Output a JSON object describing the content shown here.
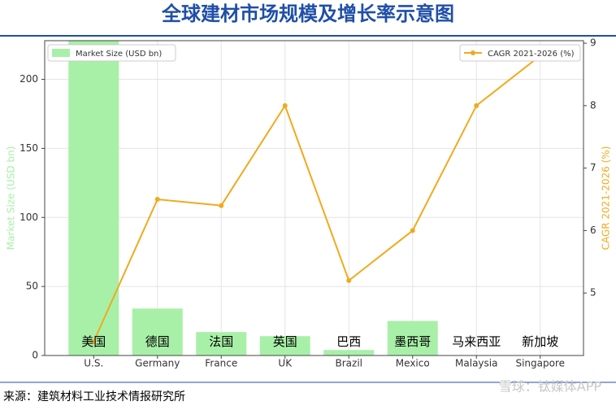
{
  "title": "全球建材市场规模及增长率示意图",
  "source": "来源：建筑材料工业技术情报研究所",
  "watermark": "雪球：钛媒体APP",
  "chart_data": {
    "type": "bar-line",
    "categories": [
      "U.S.",
      "Germany",
      "France",
      "UK",
      "Brazil",
      "Mexico",
      "Malaysia",
      "Singapore"
    ],
    "category_labels_cn": [
      "美国",
      "德国",
      "法国",
      "英国",
      "巴西",
      "墨西哥",
      "马来西亚",
      "新加坡"
    ],
    "ylabel": "Market Size (USD bn)",
    "y2label": "CAGR 2021-2026 (%)",
    "series": [
      {
        "name": "Market Size (USD bn)",
        "type": "bar",
        "color": "#a8f0a8",
        "values": [
          230,
          34,
          17,
          14,
          4,
          25,
          0,
          0
        ]
      },
      {
        "name": "CAGR 2021-2026 (%)",
        "type": "line",
        "axis": "y2",
        "color": "#f0aa1e",
        "values": [
          4.22,
          6.5,
          6.4,
          8.0,
          5.2,
          6.0,
          8.0,
          8.8
        ]
      }
    ],
    "ylim": [
      0,
      228
    ],
    "yticks": [
      0,
      50,
      100,
      150,
      200
    ],
    "y2lim": [
      4,
      9.04
    ],
    "y2ticks": [
      5,
      6,
      7,
      8,
      9
    ],
    "grid": true,
    "legend": "top"
  }
}
